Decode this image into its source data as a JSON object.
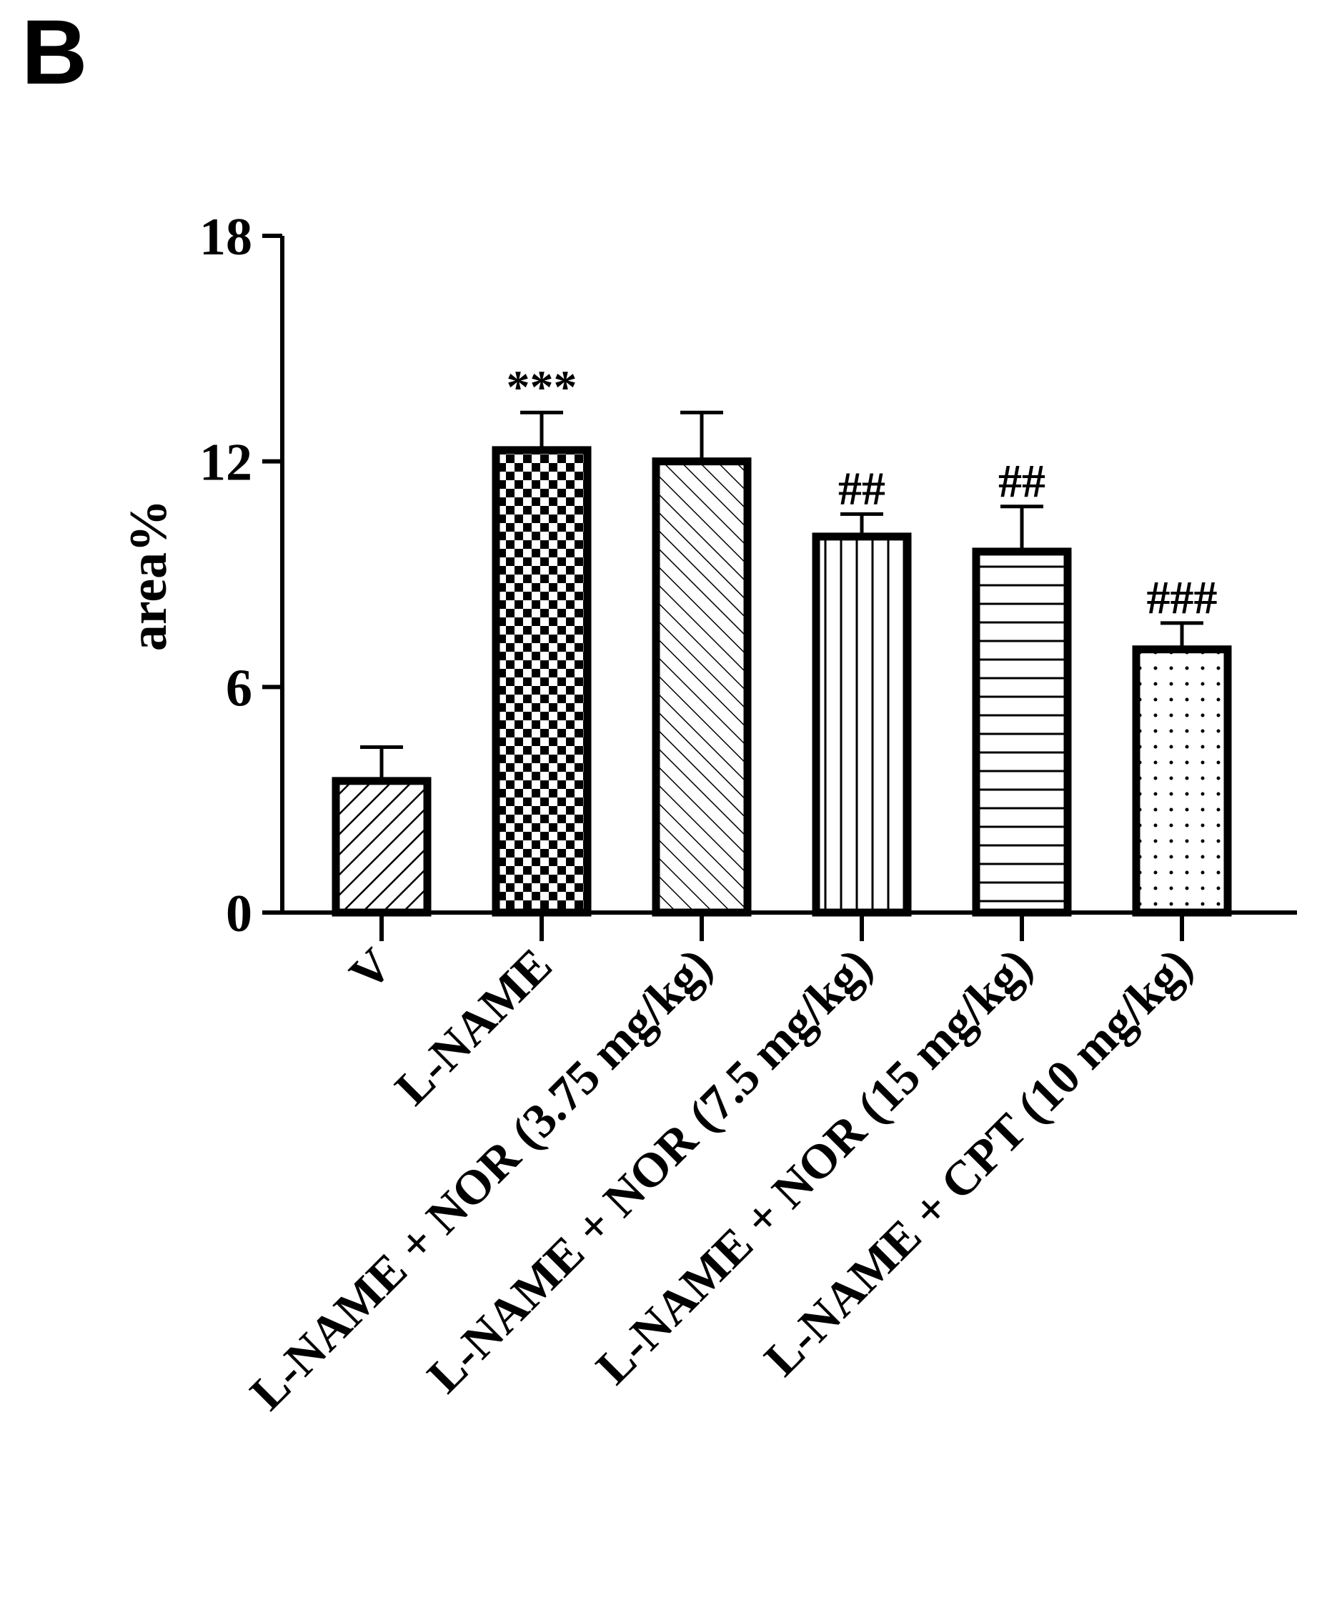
{
  "panel_label": "B",
  "chart_data": {
    "type": "bar",
    "title": "",
    "xlabel": "",
    "ylabel": "area%",
    "ylim": [
      0,
      18
    ],
    "yticks": [
      "0",
      "6",
      "12",
      "18"
    ],
    "grid": false,
    "categories": [
      "V",
      "L-NAME",
      "L-NAME + NOR (3.75 mg/kg)",
      "L-NAME + NOR (7.5 mg/kg)",
      "L-NAME + NOR (15 mg/kg)",
      "L-NAME + CPT (10 mg/kg)"
    ],
    "values": [
      3.5,
      12.3,
      12.0,
      10.0,
      9.6,
      7.0
    ],
    "errors": [
      0.9,
      1.0,
      1.3,
      0.6,
      1.2,
      0.7
    ],
    "annotations": [
      "",
      "***",
      "",
      "##",
      "##",
      "###"
    ],
    "patterns": [
      "diag-up",
      "checker",
      "diag-down",
      "vertical",
      "horizontal",
      "dots"
    ],
    "colors": {
      "bar_stroke": "#000000",
      "bar_fill": "#ffffff",
      "axis": "#000000"
    }
  }
}
